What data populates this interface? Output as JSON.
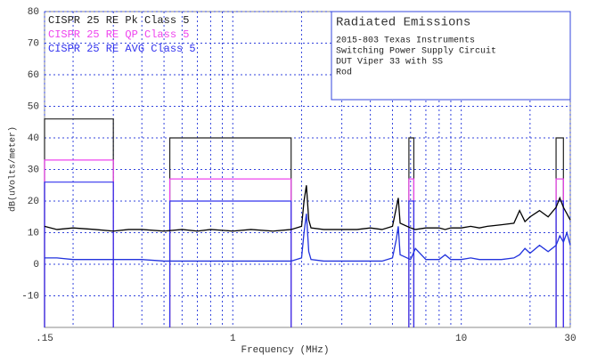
{
  "chart_data": {
    "type": "line",
    "xlabel": "Frequency (MHz)",
    "ylabel": "dB(uVolts/meter)",
    "log_x": true,
    "grid": true,
    "grid_color": "#3344dd",
    "xlim": [
      0.15,
      30
    ],
    "ylim": [
      -20,
      80
    ],
    "xticks": [
      {
        "value": 0.15,
        "label": ".15"
      },
      1,
      10,
      30
    ],
    "xminor": [
      0.2,
      0.3,
      0.4,
      0.5,
      0.6,
      0.7,
      0.8,
      0.9,
      2,
      3,
      4,
      5,
      6,
      7,
      8,
      9,
      20
    ],
    "yticks": [
      -10,
      0,
      10,
      20,
      30,
      40,
      50,
      60,
      70,
      80
    ],
    "series": [
      {
        "name": "CISPR 25 RE Pk Class 5",
        "color": "#222222",
        "bands": [
          {
            "x": [
              0.15,
              0.3
            ],
            "value": 46
          },
          {
            "x": [
              0.53,
              1.8
            ],
            "value": 40
          },
          {
            "x": [
              5.9,
              6.2
            ],
            "value": 40
          },
          {
            "x": [
              26,
              28
            ],
            "value": 40
          }
        ]
      },
      {
        "name": "CISPR 25 RE QP Class 5",
        "color": "#ee44ee",
        "bands": [
          {
            "x": [
              0.15,
              0.3
            ],
            "value": 33
          },
          {
            "x": [
              0.53,
              1.8
            ],
            "value": 27
          },
          {
            "x": [
              5.9,
              6.2
            ],
            "value": 27
          },
          {
            "x": [
              26,
              28
            ],
            "value": 27
          }
        ]
      },
      {
        "name": "CISPR 25 RE AVG Class 5",
        "color": "#3333ee",
        "bands": [
          {
            "x": [
              0.15,
              0.3
            ],
            "value": 26
          },
          {
            "x": [
              0.53,
              1.8
            ],
            "value": 20
          },
          {
            "x": [
              5.9,
              6.2
            ],
            "value": 20
          },
          {
            "x": [
              26,
              28
            ],
            "value": 20
          }
        ]
      }
    ],
    "x": [
      0.15,
      0.17,
      0.2,
      0.25,
      0.3,
      0.35,
      0.4,
      0.5,
      0.6,
      0.7,
      0.8,
      1,
      1.2,
      1.5,
      1.8,
      2.0,
      2.05,
      2.1,
      2.15,
      2.2,
      2.5,
      3,
      3.5,
      4,
      4.5,
      5,
      5.2,
      5.3,
      5.4,
      6,
      6.3,
      7,
      8,
      8.5,
      9,
      10,
      11,
      12,
      13,
      15,
      17,
      18,
      19,
      20,
      22,
      24,
      26,
      27,
      28,
      29,
      30
    ],
    "traces": [
      {
        "color": "#000000",
        "values": [
          12,
          11,
          11.5,
          11,
          10.5,
          11,
          11,
          10.5,
          11,
          10.5,
          11,
          10.5,
          11,
          10.5,
          11,
          12,
          20,
          25,
          14,
          11.5,
          11,
          11,
          11,
          11.5,
          11,
          12,
          18,
          21,
          13,
          11.5,
          11,
          11.5,
          11.5,
          11,
          11.5,
          11.5,
          12,
          11.5,
          12,
          12.5,
          13,
          17,
          13.5,
          15,
          17,
          15,
          18,
          21,
          18,
          16,
          14
        ]
      },
      {
        "color": "#2233dd",
        "values": [
          2,
          2,
          1.5,
          1.5,
          1.5,
          1.5,
          1.5,
          1,
          1,
          1,
          1,
          1,
          1,
          1,
          1,
          2,
          10,
          16,
          4,
          1.5,
          1,
          1,
          1,
          1,
          1,
          2,
          8,
          12,
          3,
          1.5,
          5,
          1.5,
          1.5,
          3,
          1.5,
          1.5,
          2,
          1.5,
          1.5,
          1.5,
          2,
          3,
          5,
          3.5,
          6,
          4,
          6,
          9,
          7,
          10,
          6
        ]
      }
    ],
    "annotation": {
      "title": "Radiated Emissions",
      "lines": [
        "2015-803 Texas Instruments",
        "Switching Power Supply Circuit",
        "DUT Viper 33 with SS",
        "Rod"
      ]
    }
  }
}
